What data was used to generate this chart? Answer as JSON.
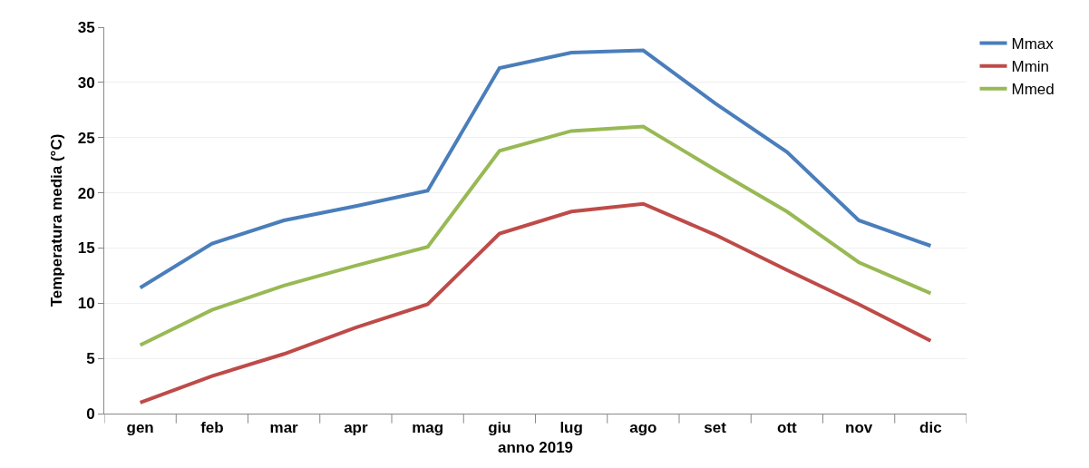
{
  "chart_data": {
    "type": "line",
    "xlabel": "anno 2019",
    "ylabel": "Temperatura media (°C)",
    "categories": [
      "gen",
      "feb",
      "mar",
      "apr",
      "mag",
      "giu",
      "lug",
      "ago",
      "set",
      "ott",
      "nov",
      "dic"
    ],
    "series": [
      {
        "name": "Mmax",
        "color": "#4a7ebb",
        "values": [
          11.4,
          15.4,
          17.5,
          18.8,
          20.2,
          31.3,
          32.7,
          32.9,
          28.1,
          23.7,
          17.5,
          15.2
        ]
      },
      {
        "name": "Mmin",
        "color": "#be4b48",
        "values": [
          1.0,
          3.4,
          5.4,
          7.8,
          9.9,
          16.3,
          18.3,
          19.0,
          16.2,
          13.0,
          9.9,
          6.6
        ]
      },
      {
        "name": "Mmed",
        "color": "#98b954",
        "values": [
          6.2,
          9.4,
          11.6,
          13.4,
          15.1,
          23.8,
          25.6,
          26.0,
          22.1,
          18.3,
          13.7,
          10.9
        ]
      }
    ],
    "ylim": [
      0,
      35
    ],
    "yticks": [
      0,
      5,
      10,
      15,
      20,
      25,
      30,
      35
    ],
    "grid": "y",
    "legend": "top right",
    "marker": "none",
    "line_style": "solid"
  }
}
